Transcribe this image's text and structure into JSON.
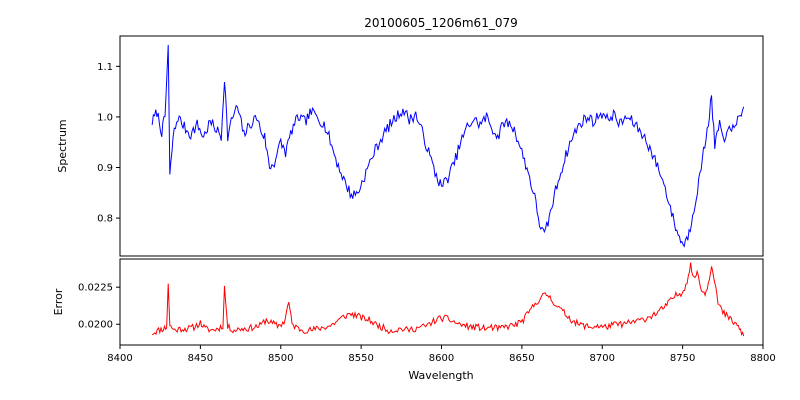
{
  "figure": {
    "title": "20100605_1206m61_079",
    "xlabel": "Wavelength",
    "ylabel_top": "Spectrum",
    "ylabel_bottom": "Error"
  },
  "chart_data": {
    "type": "line",
    "title": "20100605_1206m61_079",
    "xlabel": "Wavelength",
    "xlim": [
      8400,
      8800
    ],
    "xticks": [
      8400,
      8450,
      8500,
      8550,
      8600,
      8650,
      8700,
      8750,
      8800
    ],
    "grid": false,
    "legend": "none",
    "panels": [
      {
        "name": "Spectrum",
        "ylabel": "Spectrum",
        "color": "#0000ff",
        "ylim": [
          0.725,
          1.16
        ],
        "yticks": [
          {
            "v": 0.8,
            "label": "0.8"
          },
          {
            "v": 0.9,
            "label": "0.9"
          },
          {
            "v": 1.0,
            "label": "1.0"
          },
          {
            "v": 1.1,
            "label": "1.1"
          }
        ],
        "noise": 0.011,
        "seed": 7,
        "step": 0.8,
        "points": [
          [
            8420,
            0.99
          ],
          [
            8423,
            1.01
          ],
          [
            8426,
            0.97
          ],
          [
            8428,
            1.0
          ],
          [
            8430,
            1.14
          ],
          [
            8431,
            0.88
          ],
          [
            8433,
            0.96
          ],
          [
            8436,
            1.0
          ],
          [
            8440,
            0.98
          ],
          [
            8444,
            0.965
          ],
          [
            8448,
            0.985
          ],
          [
            8452,
            0.96
          ],
          [
            8456,
            0.99
          ],
          [
            8460,
            0.975
          ],
          [
            8463,
            0.96
          ],
          [
            8465,
            1.08
          ],
          [
            8467,
            0.96
          ],
          [
            8470,
            1.0
          ],
          [
            8473,
            1.02
          ],
          [
            8477,
            0.965
          ],
          [
            8481,
            0.985
          ],
          [
            8485,
            1.0
          ],
          [
            8488,
            0.97
          ],
          [
            8490,
            0.96
          ],
          [
            8493,
            0.9
          ],
          [
            8496,
            0.91
          ],
          [
            8500,
            0.95
          ],
          [
            8503,
            0.93
          ],
          [
            8507,
            0.975
          ],
          [
            8511,
            1.0
          ],
          [
            8515,
            0.99
          ],
          [
            8519,
            1.01
          ],
          [
            8523,
            1.0
          ],
          [
            8527,
            0.985
          ],
          [
            8530,
            0.96
          ],
          [
            8535,
            0.91
          ],
          [
            8540,
            0.87
          ],
          [
            8544,
            0.845
          ],
          [
            8548,
            0.85
          ],
          [
            8553,
            0.89
          ],
          [
            8558,
            0.93
          ],
          [
            8563,
            0.96
          ],
          [
            8568,
            0.985
          ],
          [
            8572,
            1.0
          ],
          [
            8576,
            1.015
          ],
          [
            8580,
            0.995
          ],
          [
            8584,
            1.005
          ],
          [
            8588,
            0.97
          ],
          [
            8592,
            0.93
          ],
          [
            8596,
            0.89
          ],
          [
            8600,
            0.862
          ],
          [
            8604,
            0.88
          ],
          [
            8608,
            0.91
          ],
          [
            8612,
            0.95
          ],
          [
            8616,
            0.98
          ],
          [
            8620,
            0.995
          ],
          [
            8624,
            0.985
          ],
          [
            8628,
            1.0
          ],
          [
            8632,
            0.975
          ],
          [
            8635,
            0.96
          ],
          [
            8639,
            0.99
          ],
          [
            8643,
            0.985
          ],
          [
            8646,
            0.97
          ],
          [
            8650,
            0.93
          ],
          [
            8654,
            0.89
          ],
          [
            8658,
            0.84
          ],
          [
            8661,
            0.79
          ],
          [
            8664,
            0.765
          ],
          [
            8667,
            0.8
          ],
          [
            8671,
            0.855
          ],
          [
            8675,
            0.9
          ],
          [
            8679,
            0.94
          ],
          [
            8683,
            0.97
          ],
          [
            8687,
            0.99
          ],
          [
            8691,
            1.0
          ],
          [
            8695,
            0.99
          ],
          [
            8699,
            1.01
          ],
          [
            8703,
            0.995
          ],
          [
            8707,
            1.005
          ],
          [
            8711,
            0.985
          ],
          [
            8715,
            1.0
          ],
          [
            8719,
            0.99
          ],
          [
            8724,
            0.97
          ],
          [
            8728,
            0.95
          ],
          [
            8732,
            0.92
          ],
          [
            8736,
            0.89
          ],
          [
            8740,
            0.85
          ],
          [
            8744,
            0.8
          ],
          [
            8748,
            0.76
          ],
          [
            8751,
            0.748
          ],
          [
            8754,
            0.77
          ],
          [
            8757,
            0.82
          ],
          [
            8760,
            0.87
          ],
          [
            8763,
            0.93
          ],
          [
            8766,
            0.99
          ],
          [
            8768,
            1.04
          ],
          [
            8770,
            0.94
          ],
          [
            8773,
            0.99
          ],
          [
            8776,
            0.94
          ],
          [
            8779,
            0.99
          ],
          [
            8782,
            0.97
          ],
          [
            8785,
            1.0
          ],
          [
            8788,
            1.02
          ]
        ]
      },
      {
        "name": "Error",
        "ylabel": "Error",
        "color": "#ff0000",
        "ylim": [
          0.0186,
          0.0244
        ],
        "yticks": [
          {
            "v": 0.02,
            "label": "0.0200"
          },
          {
            "v": 0.0225,
            "label": "0.0225"
          }
        ],
        "noise": 0.00022,
        "seed": 11,
        "step": 0.8,
        "points": [
          [
            8420,
            0.0194
          ],
          [
            8424,
            0.0196
          ],
          [
            8427,
            0.0197
          ],
          [
            8429,
            0.0198
          ],
          [
            8430,
            0.0228
          ],
          [
            8431,
            0.0199
          ],
          [
            8434,
            0.0196
          ],
          [
            8438,
            0.0197
          ],
          [
            8442,
            0.0197
          ],
          [
            8446,
            0.0198
          ],
          [
            8450,
            0.0201
          ],
          [
            8453,
            0.0197
          ],
          [
            8457,
            0.0196
          ],
          [
            8461,
            0.0197
          ],
          [
            8464,
            0.0199
          ],
          [
            8465,
            0.0225
          ],
          [
            8467,
            0.0198
          ],
          [
            8471,
            0.0196
          ],
          [
            8475,
            0.0197
          ],
          [
            8479,
            0.0197
          ],
          [
            8483,
            0.0198
          ],
          [
            8487,
            0.0199
          ],
          [
            8491,
            0.0203
          ],
          [
            8494,
            0.0201
          ],
          [
            8498,
            0.0199
          ],
          [
            8502,
            0.0201
          ],
          [
            8505,
            0.0215
          ],
          [
            8507,
            0.02
          ],
          [
            8511,
            0.0197
          ],
          [
            8515,
            0.0196
          ],
          [
            8519,
            0.0196
          ],
          [
            8523,
            0.0197
          ],
          [
            8527,
            0.0198
          ],
          [
            8531,
            0.0199
          ],
          [
            8535,
            0.0202
          ],
          [
            8539,
            0.0205
          ],
          [
            8543,
            0.0207
          ],
          [
            8547,
            0.0206
          ],
          [
            8551,
            0.0204
          ],
          [
            8555,
            0.0203
          ],
          [
            8559,
            0.02
          ],
          [
            8563,
            0.0198
          ],
          [
            8567,
            0.0196
          ],
          [
            8571,
            0.0196
          ],
          [
            8575,
            0.0197
          ],
          [
            8579,
            0.0196
          ],
          [
            8583,
            0.0197
          ],
          [
            8587,
            0.0198
          ],
          [
            8591,
            0.0199
          ],
          [
            8595,
            0.0202
          ],
          [
            8599,
            0.0204
          ],
          [
            8603,
            0.0204
          ],
          [
            8607,
            0.0202
          ],
          [
            8611,
            0.02
          ],
          [
            8615,
            0.0199
          ],
          [
            8619,
            0.0198
          ],
          [
            8623,
            0.0198
          ],
          [
            8627,
            0.0197
          ],
          [
            8631,
            0.0198
          ],
          [
            8635,
            0.0197
          ],
          [
            8639,
            0.0198
          ],
          [
            8643,
            0.0199
          ],
          [
            8647,
            0.02
          ],
          [
            8651,
            0.0203
          ],
          [
            8655,
            0.0209
          ],
          [
            8659,
            0.0215
          ],
          [
            8663,
            0.0219
          ],
          [
            8666,
            0.022
          ],
          [
            8669,
            0.0216
          ],
          [
            8673,
            0.0211
          ],
          [
            8677,
            0.0207
          ],
          [
            8681,
            0.0203
          ],
          [
            8685,
            0.02
          ],
          [
            8689,
            0.0199
          ],
          [
            8693,
            0.0198
          ],
          [
            8697,
            0.0199
          ],
          [
            8701,
            0.0198
          ],
          [
            8705,
            0.0199
          ],
          [
            8709,
            0.02
          ],
          [
            8713,
            0.02
          ],
          [
            8717,
            0.0201
          ],
          [
            8721,
            0.0202
          ],
          [
            8725,
            0.0203
          ],
          [
            8729,
            0.0205
          ],
          [
            8733,
            0.0207
          ],
          [
            8737,
            0.021
          ],
          [
            8741,
            0.0214
          ],
          [
            8745,
            0.0219
          ],
          [
            8749,
            0.0221
          ],
          [
            8752,
            0.0226
          ],
          [
            8755,
            0.024
          ],
          [
            8757,
            0.023
          ],
          [
            8759,
            0.0236
          ],
          [
            8761,
            0.0226
          ],
          [
            8764,
            0.022
          ],
          [
            8766,
            0.0228
          ],
          [
            8768,
            0.024
          ],
          [
            8770,
            0.023
          ],
          [
            8772,
            0.0214
          ],
          [
            8775,
            0.0208
          ],
          [
            8778,
            0.0205
          ],
          [
            8781,
            0.0202
          ],
          [
            8784,
            0.0199
          ],
          [
            8786,
            0.0196
          ],
          [
            8788,
            0.0192
          ]
        ]
      }
    ]
  }
}
